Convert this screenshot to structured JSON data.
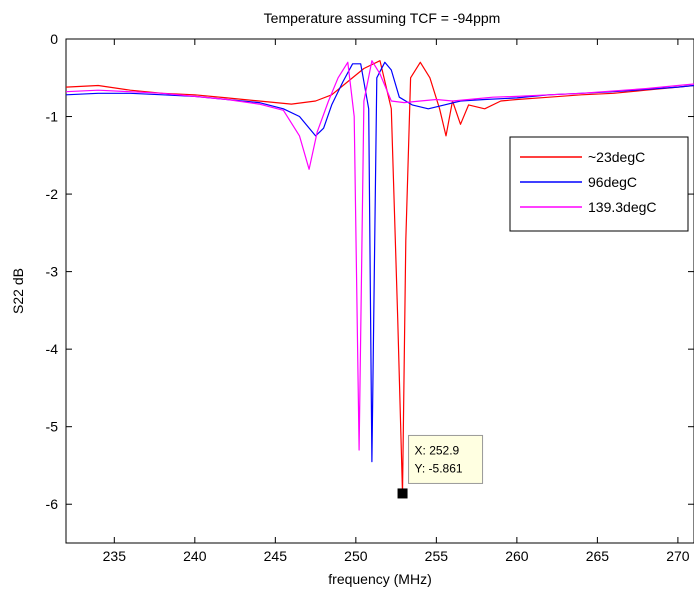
{
  "chart_data": {
    "type": "line",
    "title": "Temperature assuming TCF = -94ppm",
    "xlabel": "frequency (MHz)",
    "ylabel": "S22 dB",
    "xlim": [
      232,
      271
    ],
    "ylim": [
      -6.5,
      0
    ],
    "xticks": [
      235,
      240,
      245,
      250,
      255,
      260,
      265,
      270
    ],
    "yticks": [
      0,
      -1,
      -2,
      -3,
      -4,
      -5,
      -6
    ],
    "grid": false,
    "legend_placement": "top-right",
    "series": [
      {
        "name": "~23degC",
        "color": "#ff0000",
        "points": [
          [
            232,
            -0.62
          ],
          [
            234,
            -0.6
          ],
          [
            236,
            -0.66
          ],
          [
            238,
            -0.7
          ],
          [
            240,
            -0.72
          ],
          [
            242,
            -0.76
          ],
          [
            244,
            -0.8
          ],
          [
            246,
            -0.84
          ],
          [
            247.5,
            -0.8
          ],
          [
            248.5,
            -0.72
          ],
          [
            249.5,
            -0.55
          ],
          [
            250.5,
            -0.38
          ],
          [
            251.5,
            -0.28
          ],
          [
            252.2,
            -0.9
          ],
          [
            252.6,
            -3.6
          ],
          [
            252.9,
            -5.861
          ],
          [
            253.1,
            -2.6
          ],
          [
            253.4,
            -0.5
          ],
          [
            254,
            -0.3
          ],
          [
            254.6,
            -0.5
          ],
          [
            255.2,
            -0.9
          ],
          [
            255.6,
            -1.25
          ],
          [
            256,
            -0.8
          ],
          [
            256.5,
            -1.1
          ],
          [
            257,
            -0.85
          ],
          [
            258,
            -0.9
          ],
          [
            259,
            -0.8
          ],
          [
            260,
            -0.78
          ],
          [
            262,
            -0.75
          ],
          [
            264,
            -0.72
          ],
          [
            266,
            -0.7
          ],
          [
            268,
            -0.66
          ],
          [
            270,
            -0.62
          ],
          [
            271,
            -0.6
          ]
        ]
      },
      {
        "name": "96degC",
        "color": "#0000ff",
        "points": [
          [
            232,
            -0.72
          ],
          [
            234,
            -0.7
          ],
          [
            236,
            -0.7
          ],
          [
            238,
            -0.72
          ],
          [
            240,
            -0.74
          ],
          [
            242,
            -0.78
          ],
          [
            244,
            -0.82
          ],
          [
            245.5,
            -0.9
          ],
          [
            246.5,
            -1.0
          ],
          [
            247.5,
            -1.25
          ],
          [
            248,
            -1.15
          ],
          [
            248.5,
            -0.85
          ],
          [
            249.2,
            -0.55
          ],
          [
            249.8,
            -0.32
          ],
          [
            250.3,
            -0.32
          ],
          [
            250.8,
            -0.9
          ],
          [
            251,
            -5.45
          ],
          [
            251.3,
            -0.5
          ],
          [
            251.8,
            -0.3
          ],
          [
            252.2,
            -0.4
          ],
          [
            252.7,
            -0.75
          ],
          [
            253.5,
            -0.85
          ],
          [
            254.5,
            -0.9
          ],
          [
            255.5,
            -0.85
          ],
          [
            256.5,
            -0.8
          ],
          [
            258,
            -0.78
          ],
          [
            260,
            -0.76
          ],
          [
            262,
            -0.72
          ],
          [
            264,
            -0.7
          ],
          [
            266,
            -0.68
          ],
          [
            268,
            -0.65
          ],
          [
            270,
            -0.62
          ],
          [
            271,
            -0.6
          ]
        ]
      },
      {
        "name": "139.3degC",
        "color": "#ff00ff",
        "points": [
          [
            232,
            -0.68
          ],
          [
            234,
            -0.66
          ],
          [
            236,
            -0.68
          ],
          [
            238,
            -0.7
          ],
          [
            240,
            -0.74
          ],
          [
            242,
            -0.78
          ],
          [
            244,
            -0.84
          ],
          [
            245.5,
            -0.92
          ],
          [
            246.5,
            -1.25
          ],
          [
            247.1,
            -1.68
          ],
          [
            247.6,
            -1.2
          ],
          [
            248.3,
            -0.8
          ],
          [
            248.9,
            -0.5
          ],
          [
            249.5,
            -0.3
          ],
          [
            249.9,
            -1.0
          ],
          [
            250.2,
            -5.3
          ],
          [
            250.5,
            -0.8
          ],
          [
            251,
            -0.28
          ],
          [
            251.5,
            -0.45
          ],
          [
            252.2,
            -0.8
          ],
          [
            253,
            -0.82
          ],
          [
            254,
            -0.8
          ],
          [
            255,
            -0.78
          ],
          [
            256,
            -0.8
          ],
          [
            257,
            -0.78
          ],
          [
            258.5,
            -0.75
          ],
          [
            260,
            -0.74
          ],
          [
            262,
            -0.72
          ],
          [
            264,
            -0.7
          ],
          [
            266,
            -0.67
          ],
          [
            268,
            -0.64
          ],
          [
            270,
            -0.6
          ],
          [
            271,
            -0.58
          ]
        ]
      }
    ],
    "datatip": {
      "x_text": "X: 252.9",
      "y_text": "Y: -5.861",
      "x": 252.9,
      "y": -5.861
    }
  }
}
